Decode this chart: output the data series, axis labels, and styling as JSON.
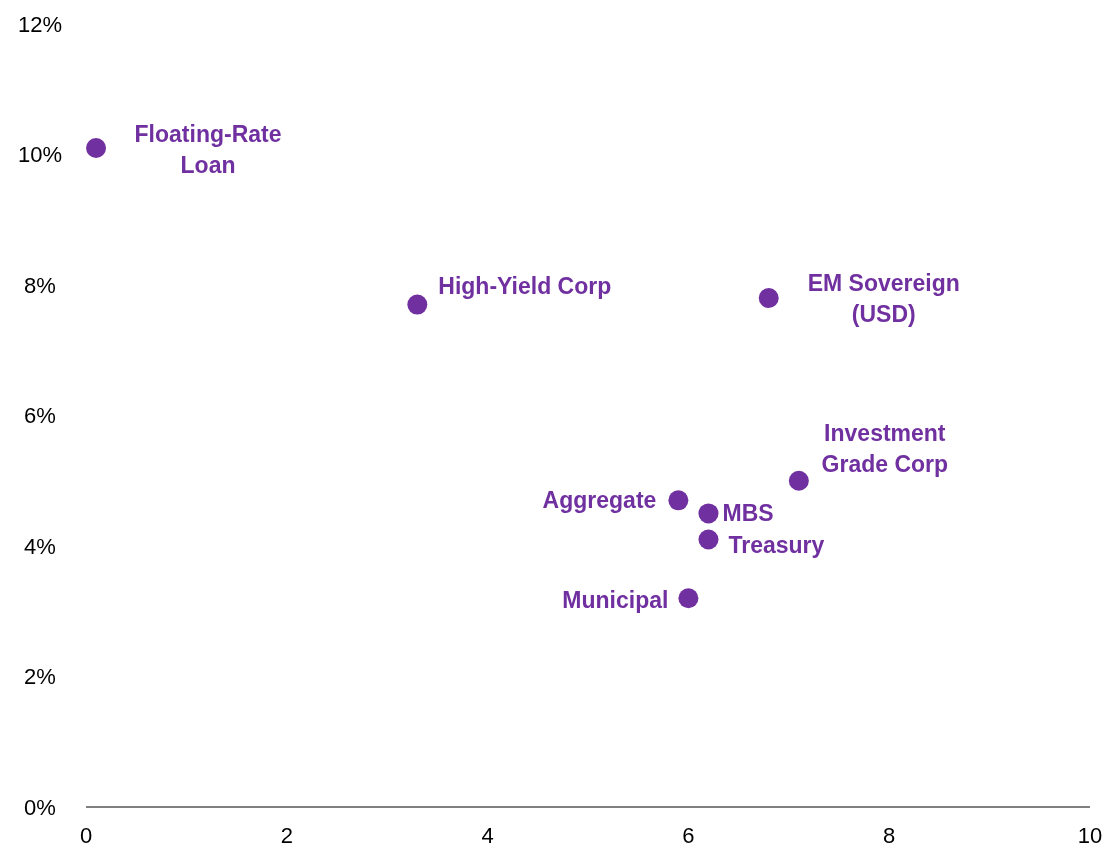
{
  "chart_data": {
    "type": "scatter",
    "x": [
      0.1,
      3.3,
      6.8,
      7.1,
      5.9,
      6.2,
      6.2,
      6.0
    ],
    "series": [
      {
        "color": "#7030a0",
        "values": [
          10.1,
          7.7,
          7.8,
          5.0,
          4.7,
          4.5,
          4.1,
          3.2
        ]
      }
    ],
    "marker": "circle",
    "grid": false,
    "xlim": [
      0,
      10
    ],
    "xticks": [
      0,
      2,
      4,
      6,
      8,
      10
    ],
    "ylim": [
      0,
      12
    ],
    "yticks": [
      {
        "value": 0,
        "label": "0%"
      },
      {
        "value": 2,
        "label": "2%"
      },
      {
        "value": 4,
        "label": "4%"
      },
      {
        "value": 6,
        "label": "6%"
      },
      {
        "value": 8,
        "label": "8%"
      },
      {
        "value": 10,
        "label": "10%"
      },
      {
        "value": 12,
        "label": "12%"
      }
    ],
    "annotations": [
      {
        "text": "Floating-Rate Loan",
        "x": 0.1,
        "y": 10.1
      },
      {
        "text": "High-Yield Corp",
        "x": 3.3,
        "y": 7.7
      },
      {
        "text": "EM Sovereign (USD)",
        "x": 6.8,
        "y": 7.8
      },
      {
        "text": "Investment Grade Corp",
        "x": 7.1,
        "y": 5.0
      },
      {
        "text": "Aggregate",
        "x": 5.9,
        "y": 4.7
      },
      {
        "text": "MBS",
        "x": 6.2,
        "y": 4.5
      },
      {
        "text": "Treasury",
        "x": 6.2,
        "y": 4.1
      },
      {
        "text": "Municipal",
        "x": 6.0,
        "y": 3.2
      }
    ]
  }
}
